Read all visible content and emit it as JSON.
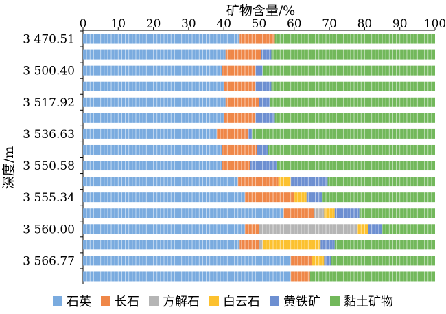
{
  "chart_data": {
    "type": "bar",
    "orientation": "horizontal",
    "stacked": true,
    "title": "矿物含量/%",
    "ylabel": "深度/m",
    "xlim": [
      0,
      100
    ],
    "xticks": [
      "0",
      "10",
      "20",
      "30",
      "40",
      "50",
      "60",
      "70",
      "80",
      "90",
      "100"
    ],
    "categories": [
      "3 470.51",
      "",
      "3 500.40",
      "",
      "3 517.92",
      "",
      "3 536.63",
      "",
      "3 550.58",
      "",
      "3 555.34",
      "",
      "3 560.00",
      "",
      "3 566.77",
      ""
    ],
    "series": [
      {
        "name": "石英",
        "color": "#7aabdf",
        "values": [
          44.5,
          40.5,
          39.5,
          40,
          40.5,
          40,
          38,
          39.5,
          39.5,
          44,
          46,
          57,
          46,
          44.5,
          59,
          59
        ]
      },
      {
        "name": "长石",
        "color": "#ef8748",
        "values": [
          10,
          10,
          9.5,
          9,
          9.5,
          9,
          9,
          10,
          8,
          11.5,
          14,
          8.5,
          4,
          5.5,
          6,
          5.5
        ]
      },
      {
        "name": "方解石",
        "color": "#b5b5b5",
        "values": [
          0,
          0,
          0,
          0,
          0,
          0,
          0,
          0,
          0,
          0,
          0,
          3,
          28,
          1,
          0,
          0
        ]
      },
      {
        "name": "白云石",
        "color": "#fcc12f",
        "values": [
          0,
          0,
          0,
          0,
          0,
          0,
          0,
          0,
          0,
          3.5,
          3.5,
          3,
          3,
          16.5,
          3.5,
          0
        ]
      },
      {
        "name": "黄铁矿",
        "color": "#6d8fd1",
        "values": [
          0,
          3,
          2,
          4.5,
          3,
          5.5,
          1,
          3,
          7.5,
          10.5,
          4.5,
          7,
          4,
          4,
          2,
          0
        ]
      },
      {
        "name": "黏土矿物",
        "color": "#72b85b",
        "values": [
          45.5,
          46.5,
          49,
          46.5,
          47,
          45.5,
          52,
          47.5,
          45,
          30.5,
          32,
          21.5,
          15,
          28.5,
          29.5,
          35.5
        ]
      }
    ],
    "grid": true,
    "legend": "bottom"
  }
}
